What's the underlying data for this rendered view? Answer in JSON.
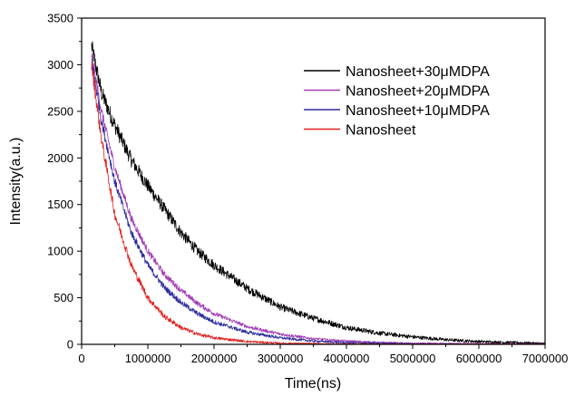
{
  "chart_data": {
    "type": "line",
    "xlabel": "Time(ns)",
    "ylabel": "Intensity(a.u.)",
    "xlim": [
      0,
      7000000
    ],
    "ylim": [
      0,
      3500
    ],
    "xticks": [
      0,
      1000000,
      2000000,
      3000000,
      4000000,
      5000000,
      6000000,
      7000000
    ],
    "xtick_labels": [
      "0",
      "1000000",
      "2000000",
      "3000000",
      "4000000",
      "5000000",
      "6000000",
      "7000000"
    ],
    "yticks": [
      0,
      500,
      1000,
      1500,
      2000,
      2500,
      3000,
      3500
    ],
    "ytick_labels": [
      "0",
      "500",
      "1000",
      "1500",
      "2000",
      "2500",
      "3000",
      "3500"
    ],
    "grid": false,
    "legend_position": "top-right",
    "series": [
      {
        "name": "Nanosheet+30μMDPA",
        "color": "#000000",
        "x": [
          150000,
          300000,
          500000,
          750000,
          1000000,
          1250000,
          1500000,
          1750000,
          2000000,
          2500000,
          3000000,
          3500000,
          4000000,
          4500000,
          5000000,
          5500000,
          6000000,
          6500000,
          7000000
        ],
        "y": [
          3200,
          2700,
          2350,
          1980,
          1700,
          1450,
          1200,
          1000,
          850,
          600,
          400,
          280,
          180,
          120,
          80,
          50,
          30,
          20,
          10
        ],
        "noise": 90
      },
      {
        "name": "Nanosheet+20μMDPA",
        "color": "#a23db5",
        "x": [
          150000,
          300000,
          500000,
          750000,
          1000000,
          1250000,
          1500000,
          1750000,
          2000000,
          2500000,
          3000000,
          3500000,
          4000000,
          4500000,
          5000000,
          6000000,
          7000000
        ],
        "y": [
          3100,
          2500,
          1900,
          1350,
          1000,
          750,
          580,
          440,
          330,
          190,
          110,
          60,
          35,
          20,
          10,
          5,
          2
        ],
        "noise": 55
      },
      {
        "name": "Nanosheet+10μMDPA",
        "color": "#2b2b9e",
        "x": [
          150000,
          300000,
          500000,
          750000,
          1000000,
          1250000,
          1500000,
          1750000,
          2000000,
          2500000,
          3000000,
          3500000,
          4000000,
          5000000,
          6000000,
          7000000
        ],
        "y": [
          3050,
          2400,
          1750,
          1200,
          850,
          610,
          450,
          330,
          240,
          130,
          70,
          35,
          18,
          6,
          2,
          1
        ],
        "noise": 60
      },
      {
        "name": "Nanosheet",
        "color": "#e21f1f",
        "x": [
          150000,
          300000,
          500000,
          750000,
          1000000,
          1250000,
          1500000,
          1750000,
          2000000,
          2500000,
          3000000,
          3500000,
          4000000,
          5000000,
          7000000
        ],
        "y": [
          3000,
          2200,
          1400,
          850,
          500,
          300,
          180,
          110,
          70,
          30,
          12,
          6,
          3,
          1,
          0
        ],
        "noise": 70
      }
    ]
  }
}
